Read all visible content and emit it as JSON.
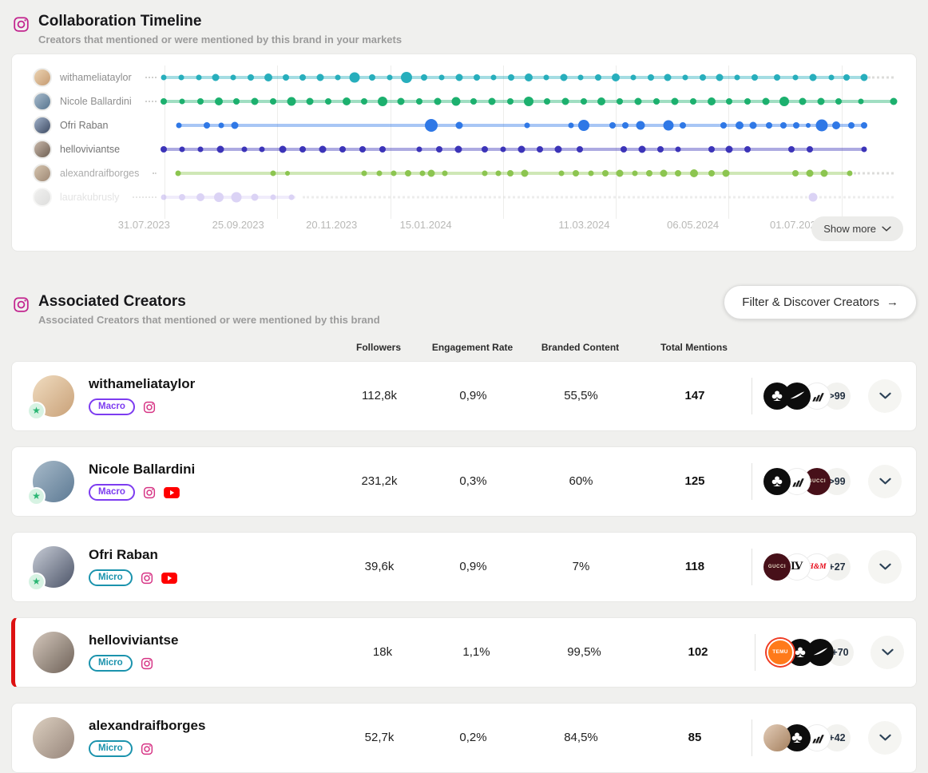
{
  "timeline": {
    "title": "Collaboration Timeline",
    "subtitle": "Creators that mentioned or were mentioned by this brand in your markets",
    "show_more": "Show more",
    "axis_labels": [
      {
        "text": "31.07.2023",
        "x_pct": -2.7
      },
      {
        "text": "25.09.2023",
        "x_pct": 10.2
      },
      {
        "text": "20.11.2023",
        "x_pct": 23.0
      },
      {
        "text": "15.01.2024",
        "x_pct": 35.9
      },
      {
        "text": "11.03.2024",
        "x_pct": 57.6
      },
      {
        "text": "06.05.2024",
        "x_pct": 72.5
      },
      {
        "text": "01.07.2024",
        "x_pct": 86.6
      }
    ],
    "rows": [
      {
        "name": "withameliataylor",
        "color": "#27aebc",
        "name_color": "#8e8e8e",
        "leader": true,
        "faded": false,
        "line": [
          0,
          96
        ],
        "trail": [
          96.5,
          100
        ],
        "dots": [
          [
            0,
            7
          ],
          [
            2.4,
            7
          ],
          [
            4.8,
            7
          ],
          [
            7.1,
            9
          ],
          [
            9.5,
            7
          ],
          [
            11.9,
            8
          ],
          [
            14.3,
            10
          ],
          [
            16.7,
            8
          ],
          [
            19,
            8
          ],
          [
            21.4,
            9
          ],
          [
            23.8,
            7
          ],
          [
            26.2,
            13
          ],
          [
            28.6,
            8
          ],
          [
            31,
            7
          ],
          [
            33.3,
            14
          ],
          [
            35.7,
            8
          ],
          [
            38.1,
            7
          ],
          [
            40.5,
            9
          ],
          [
            42.9,
            8
          ],
          [
            45.2,
            7
          ],
          [
            47.6,
            8
          ],
          [
            50,
            10
          ],
          [
            52.4,
            7
          ],
          [
            54.8,
            9
          ],
          [
            57.1,
            7
          ],
          [
            59.5,
            8
          ],
          [
            61.9,
            10
          ],
          [
            64.3,
            7
          ],
          [
            66.7,
            8
          ],
          [
            69,
            9
          ],
          [
            71.4,
            7
          ],
          [
            73.8,
            8
          ],
          [
            76.2,
            9
          ],
          [
            78.6,
            7
          ],
          [
            81,
            8
          ],
          [
            84,
            8
          ],
          [
            86.5,
            7
          ],
          [
            89,
            9
          ],
          [
            91.5,
            7
          ],
          [
            93.5,
            8
          ],
          [
            96,
            9
          ]
        ]
      },
      {
        "name": "Nicole Ballardini",
        "color": "#1cb06e",
        "name_color": "#8e8e8e",
        "leader": true,
        "faded": false,
        "line": [
          0,
          100
        ],
        "trail": null,
        "dots": [
          [
            0,
            8
          ],
          [
            2.5,
            7
          ],
          [
            5,
            8
          ],
          [
            7.5,
            10
          ],
          [
            10,
            8
          ],
          [
            12.5,
            9
          ],
          [
            15,
            8
          ],
          [
            17.5,
            11
          ],
          [
            20,
            9
          ],
          [
            22.5,
            8
          ],
          [
            25,
            10
          ],
          [
            27.5,
            8
          ],
          [
            30,
            12
          ],
          [
            32.5,
            9
          ],
          [
            35,
            8
          ],
          [
            37.5,
            9
          ],
          [
            40,
            11
          ],
          [
            42.5,
            8
          ],
          [
            45,
            9
          ],
          [
            47.5,
            8
          ],
          [
            50,
            12
          ],
          [
            52.5,
            8
          ],
          [
            55,
            9
          ],
          [
            57.5,
            8
          ],
          [
            60,
            10
          ],
          [
            62.5,
            8
          ],
          [
            65,
            9
          ],
          [
            67.5,
            8
          ],
          [
            70,
            9
          ],
          [
            72.5,
            8
          ],
          [
            75,
            10
          ],
          [
            77.5,
            8
          ],
          [
            80,
            8
          ],
          [
            82.5,
            9
          ],
          [
            85,
            12
          ],
          [
            87.5,
            9
          ],
          [
            90,
            9
          ],
          [
            92.5,
            8
          ],
          [
            95.5,
            7
          ],
          [
            100,
            9
          ]
        ]
      },
      {
        "name": "Ofri Raban",
        "color": "#2f78e6",
        "name_color": "#747474",
        "leader": false,
        "faded": false,
        "line": [
          2.1,
          96
        ],
        "trail": null,
        "dots": [
          [
            2.1,
            7
          ],
          [
            5.9,
            8
          ],
          [
            7.9,
            7
          ],
          [
            9.7,
            9
          ],
          [
            36.7,
            16
          ],
          [
            40.5,
            9
          ],
          [
            49.8,
            7
          ],
          [
            55.8,
            7
          ],
          [
            57.6,
            14
          ],
          [
            61.5,
            8
          ],
          [
            63.2,
            8
          ],
          [
            65.3,
            11
          ],
          [
            69.2,
            13
          ],
          [
            71.1,
            8
          ],
          [
            76.7,
            8
          ],
          [
            78.9,
            10
          ],
          [
            80.7,
            9
          ],
          [
            82.9,
            8
          ],
          [
            84.9,
            8
          ],
          [
            86.7,
            8
          ],
          [
            88.3,
            6
          ],
          [
            90.2,
            15
          ],
          [
            92.1,
            10
          ],
          [
            94.2,
            8
          ],
          [
            96,
            8
          ]
        ]
      },
      {
        "name": "helloviviantse",
        "color": "#3c34b8",
        "name_color": "#747474",
        "leader": false,
        "faded": false,
        "line": [
          0,
          96
        ],
        "trail": null,
        "dots": [
          [
            0,
            8
          ],
          [
            2.5,
            7
          ],
          [
            5,
            7
          ],
          [
            7.8,
            9
          ],
          [
            11,
            7
          ],
          [
            13.5,
            7
          ],
          [
            16.3,
            9
          ],
          [
            19,
            8
          ],
          [
            21.8,
            9
          ],
          [
            24.5,
            8
          ],
          [
            27.2,
            8
          ],
          [
            30,
            8
          ],
          [
            35,
            7
          ],
          [
            37.7,
            8
          ],
          [
            40.4,
            9
          ],
          [
            44,
            8
          ],
          [
            46.5,
            7
          ],
          [
            49,
            9
          ],
          [
            51.5,
            8
          ],
          [
            54,
            9
          ],
          [
            57,
            8
          ],
          [
            63,
            8
          ],
          [
            65.5,
            9
          ],
          [
            68,
            8
          ],
          [
            70.5,
            7
          ],
          [
            75,
            8
          ],
          [
            77.5,
            9
          ],
          [
            80,
            8
          ],
          [
            86,
            8
          ],
          [
            88.5,
            8
          ],
          [
            96,
            7
          ]
        ]
      },
      {
        "name": "alexandraifborges",
        "color": "#8cc550",
        "name_color": "#ababab",
        "leader": true,
        "faded": false,
        "line": [
          2,
          94
        ],
        "trail": [
          94.5,
          100
        ],
        "dots": [
          [
            2,
            7
          ],
          [
            15,
            7
          ],
          [
            17,
            6
          ],
          [
            27.5,
            7
          ],
          [
            29.5,
            7
          ],
          [
            31.5,
            7
          ],
          [
            33.5,
            8
          ],
          [
            35.5,
            7
          ],
          [
            36.7,
            9
          ],
          [
            38.5,
            7
          ],
          [
            44,
            7
          ],
          [
            45.8,
            7
          ],
          [
            47.5,
            8
          ],
          [
            49.5,
            9
          ],
          [
            54.5,
            7
          ],
          [
            56.5,
            8
          ],
          [
            58.5,
            7
          ],
          [
            60.5,
            8
          ],
          [
            62.5,
            9
          ],
          [
            64.5,
            7
          ],
          [
            66.5,
            8
          ],
          [
            68.5,
            9
          ],
          [
            70.5,
            8
          ],
          [
            72.6,
            10
          ],
          [
            75,
            8
          ],
          [
            77,
            9
          ],
          [
            86.5,
            8
          ],
          [
            88.5,
            9
          ],
          [
            90.5,
            9
          ],
          [
            94,
            7
          ]
        ]
      },
      {
        "name": "laurakubrusly",
        "color": "#b9a8ec",
        "name_color": "#c7c7c7",
        "leader": true,
        "faded": true,
        "line": [
          0,
          18
        ],
        "trail": [
          19,
          100
        ],
        "dots": [
          [
            0,
            7
          ],
          [
            2.5,
            8
          ],
          [
            5,
            10
          ],
          [
            7.5,
            12
          ],
          [
            10,
            13
          ],
          [
            12.5,
            9
          ],
          [
            15,
            7
          ],
          [
            17.5,
            7
          ],
          [
            89,
            11
          ]
        ]
      }
    ]
  },
  "creators": {
    "title": "Associated Creators",
    "subtitle": "Associated Creators that mentioned or were mentioned by this brand",
    "filter_button": "Filter & Discover Creators",
    "filter_button_arrow": "→",
    "columns": [
      "Followers",
      "Engagement Rate",
      "Branded Content",
      "Total Mentions"
    ],
    "list": [
      {
        "name": "withameliataylor",
        "tier": "Macro",
        "platforms": [
          "instagram"
        ],
        "verified": true,
        "highlighted": false,
        "followers": "112,8k",
        "engagement_rate": "0,9%",
        "branded_content": "55,5%",
        "total_mentions": "147",
        "brands": [
          "adidas-originals",
          "nike",
          "adidas"
        ],
        "more_count": ">99"
      },
      {
        "name": "Nicole Ballardini",
        "tier": "Macro",
        "platforms": [
          "instagram",
          "youtube"
        ],
        "verified": true,
        "highlighted": false,
        "followers": "231,2k",
        "engagement_rate": "0,3%",
        "branded_content": "60%",
        "total_mentions": "125",
        "brands": [
          "adidas-originals",
          "adidas",
          "gucci"
        ],
        "more_count": ">99"
      },
      {
        "name": "Ofri Raban",
        "tier": "Micro",
        "platforms": [
          "instagram",
          "youtube"
        ],
        "verified": true,
        "highlighted": false,
        "followers": "39,6k",
        "engagement_rate": "0,9%",
        "branded_content": "7%",
        "total_mentions": "118",
        "brands": [
          "gucci",
          "louis-vuitton",
          "hm"
        ],
        "more_count": "+27"
      },
      {
        "name": "helloviviantse",
        "tier": "Micro",
        "platforms": [
          "instagram"
        ],
        "verified": false,
        "highlighted": true,
        "followers": "18k",
        "engagement_rate": "1,1%",
        "branded_content": "99,5%",
        "total_mentions": "102",
        "brands": [
          "temu",
          "adidas-originals",
          "nike"
        ],
        "more_count": "+70"
      },
      {
        "name": "alexandraifborges",
        "tier": "Micro",
        "platforms": [
          "instagram"
        ],
        "verified": false,
        "highlighted": false,
        "followers": "52,7k",
        "engagement_rate": "0,2%",
        "branded_content": "84,5%",
        "total_mentions": "85",
        "brands": [
          "person",
          "adidas-originals",
          "adidas"
        ],
        "more_count": "+42"
      }
    ]
  },
  "colors": {
    "accent_red": "#dd1111",
    "macro_purple": "#7d3cf0",
    "micro_teal": "#1b93ad",
    "instagram_pink": "#d63384",
    "youtube_red": "#ff0000",
    "star_green": "#2bb673"
  }
}
